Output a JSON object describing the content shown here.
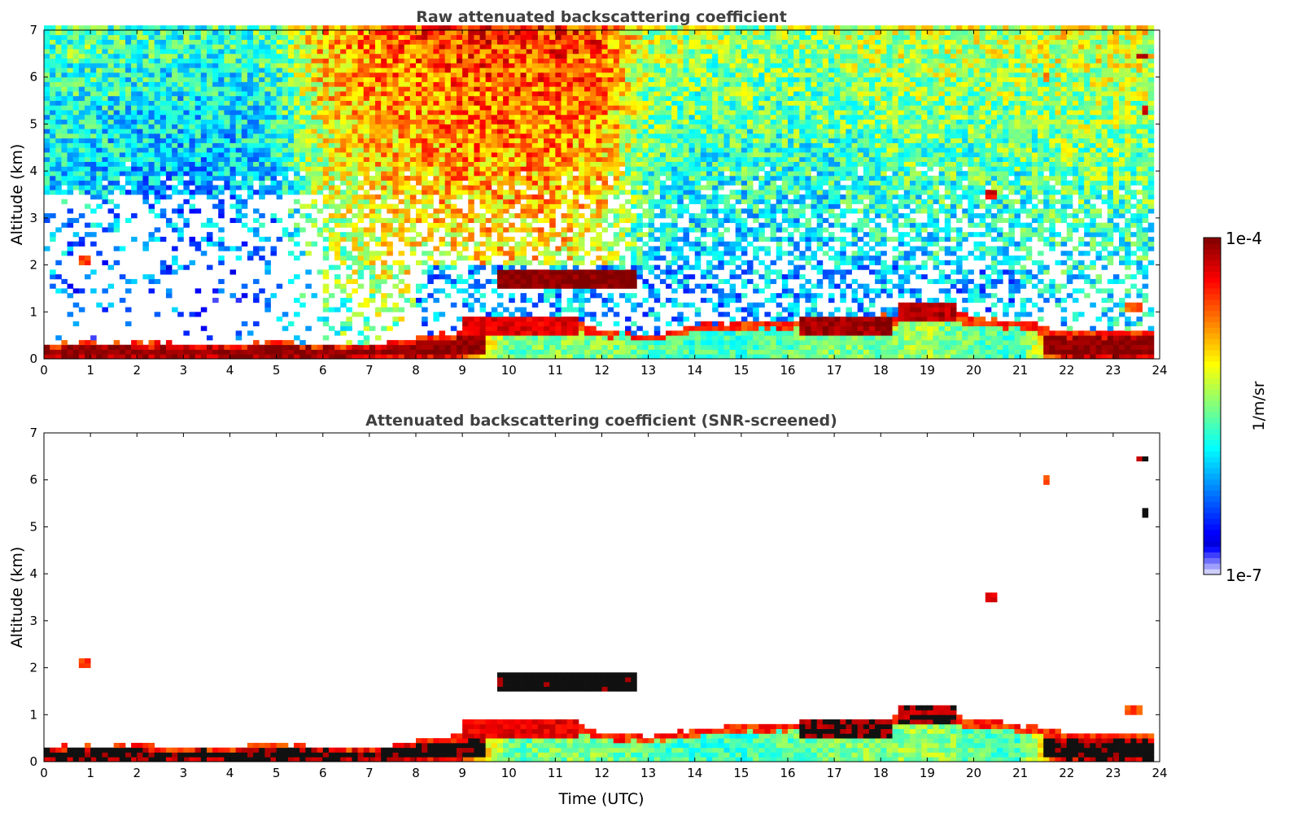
{
  "chart_data": [
    {
      "type": "heatmap",
      "title": "Raw attenuated backscattering coefficient",
      "xlabel": "",
      "ylabel": "Altitude (km)",
      "xlim": [
        0,
        24
      ],
      "ylim": [
        0,
        7
      ],
      "xticks": [
        "0",
        "1",
        "2",
        "3",
        "4",
        "5",
        "6",
        "7",
        "8",
        "9",
        "10",
        "11",
        "12",
        "13",
        "14",
        "15",
        "16",
        "17",
        "18",
        "19",
        "20",
        "21",
        "22",
        "23",
        "24"
      ],
      "yticks": [
        "0",
        "1",
        "2",
        "3",
        "4",
        "5",
        "6",
        "7"
      ],
      "screened": false
    },
    {
      "type": "heatmap",
      "title": "Attenuated backscattering coefficient (SNR-screened)",
      "xlabel": "Time (UTC)",
      "ylabel": "Altitude (km)",
      "xlim": [
        0,
        24
      ],
      "ylim": [
        0,
        7
      ],
      "xticks": [
        "0",
        "1",
        "2",
        "3",
        "4",
        "5",
        "6",
        "7",
        "8",
        "9",
        "10",
        "11",
        "12",
        "13",
        "14",
        "15",
        "16",
        "17",
        "18",
        "19",
        "20",
        "21",
        "22",
        "23",
        "24"
      ],
      "yticks": [
        "0",
        "1",
        "2",
        "3",
        "4",
        "5",
        "6",
        "7"
      ],
      "screened": true
    }
  ],
  "scene": {
    "data_end_hour": 23.8,
    "boundary_layer_top_km": [
      0.3,
      0.35,
      0.35,
      0.3,
      0.3,
      0.4,
      0.3,
      0.3,
      0.45,
      0.6,
      0.8,
      0.9,
      0.6,
      0.5,
      0.7,
      0.8,
      0.8,
      0.85,
      0.9,
      1.1,
      0.9,
      0.8,
      0.6,
      0.6
    ],
    "aerosol_log10": [
      -4.1,
      -4.1,
      -4.1,
      -4.1,
      -4.1,
      -4.0,
      -4.1,
      -4.2,
      -4.3,
      -4.4,
      -5.6,
      -5.5,
      -5.5,
      -5.6,
      -5.7,
      -5.7,
      -5.6,
      -5.5,
      -5.5,
      -5.4,
      -5.6,
      -5.7,
      -4.3,
      -4.2
    ],
    "raw_noise_log10_upper": [
      -5.6,
      -5.6,
      -5.7,
      -5.7,
      -5.7,
      -5.6,
      -4.9,
      -4.7,
      -4.6,
      -4.5,
      -4.5,
      -4.5,
      -4.6,
      -5.3,
      -5.4,
      -5.4,
      -5.4,
      -5.4,
      -5.3,
      -5.3,
      -5.3,
      -5.3,
      -5.2,
      -5.2
    ],
    "layers": [
      {
        "t": [
          9.7,
          12.8
        ],
        "alt": [
          1.5,
          1.9
        ],
        "log10": -4.0
      },
      {
        "t": [
          9.0,
          11.5
        ],
        "alt": [
          0.5,
          0.9
        ],
        "log10": -4.3
      },
      {
        "t": [
          16.2,
          18.3
        ],
        "alt": [
          0.55,
          0.85
        ],
        "log10": -4.1
      },
      {
        "t": [
          18.4,
          19.6
        ],
        "alt": [
          0.8,
          1.2
        ],
        "log10": -4.15
      },
      {
        "t": [
          0.8,
          1.0
        ],
        "alt": [
          2.0,
          2.2
        ],
        "log10": -4.5
      },
      {
        "t": [
          23.3,
          23.6
        ],
        "alt": [
          1.0,
          1.2
        ],
        "log10": -4.6
      },
      {
        "t": [
          20.3,
          20.5
        ],
        "alt": [
          3.4,
          3.6
        ],
        "log10": -4.3
      },
      {
        "t": [
          21.5,
          21.6
        ],
        "alt": [
          5.9,
          6.1
        ],
        "log10": -4.6
      },
      {
        "t": [
          23.6,
          23.7
        ],
        "alt": [
          5.2,
          5.4
        ],
        "log10": -4.2
      },
      {
        "t": [
          23.55,
          23.75
        ],
        "alt": [
          6.4,
          6.5
        ],
        "log10": -4.2
      }
    ]
  },
  "colorbar": {
    "max_label": "1e-4",
    "min_label": "1e-7",
    "unit_label": "1/m/sr",
    "log10_range": [
      -7,
      -4
    ]
  }
}
